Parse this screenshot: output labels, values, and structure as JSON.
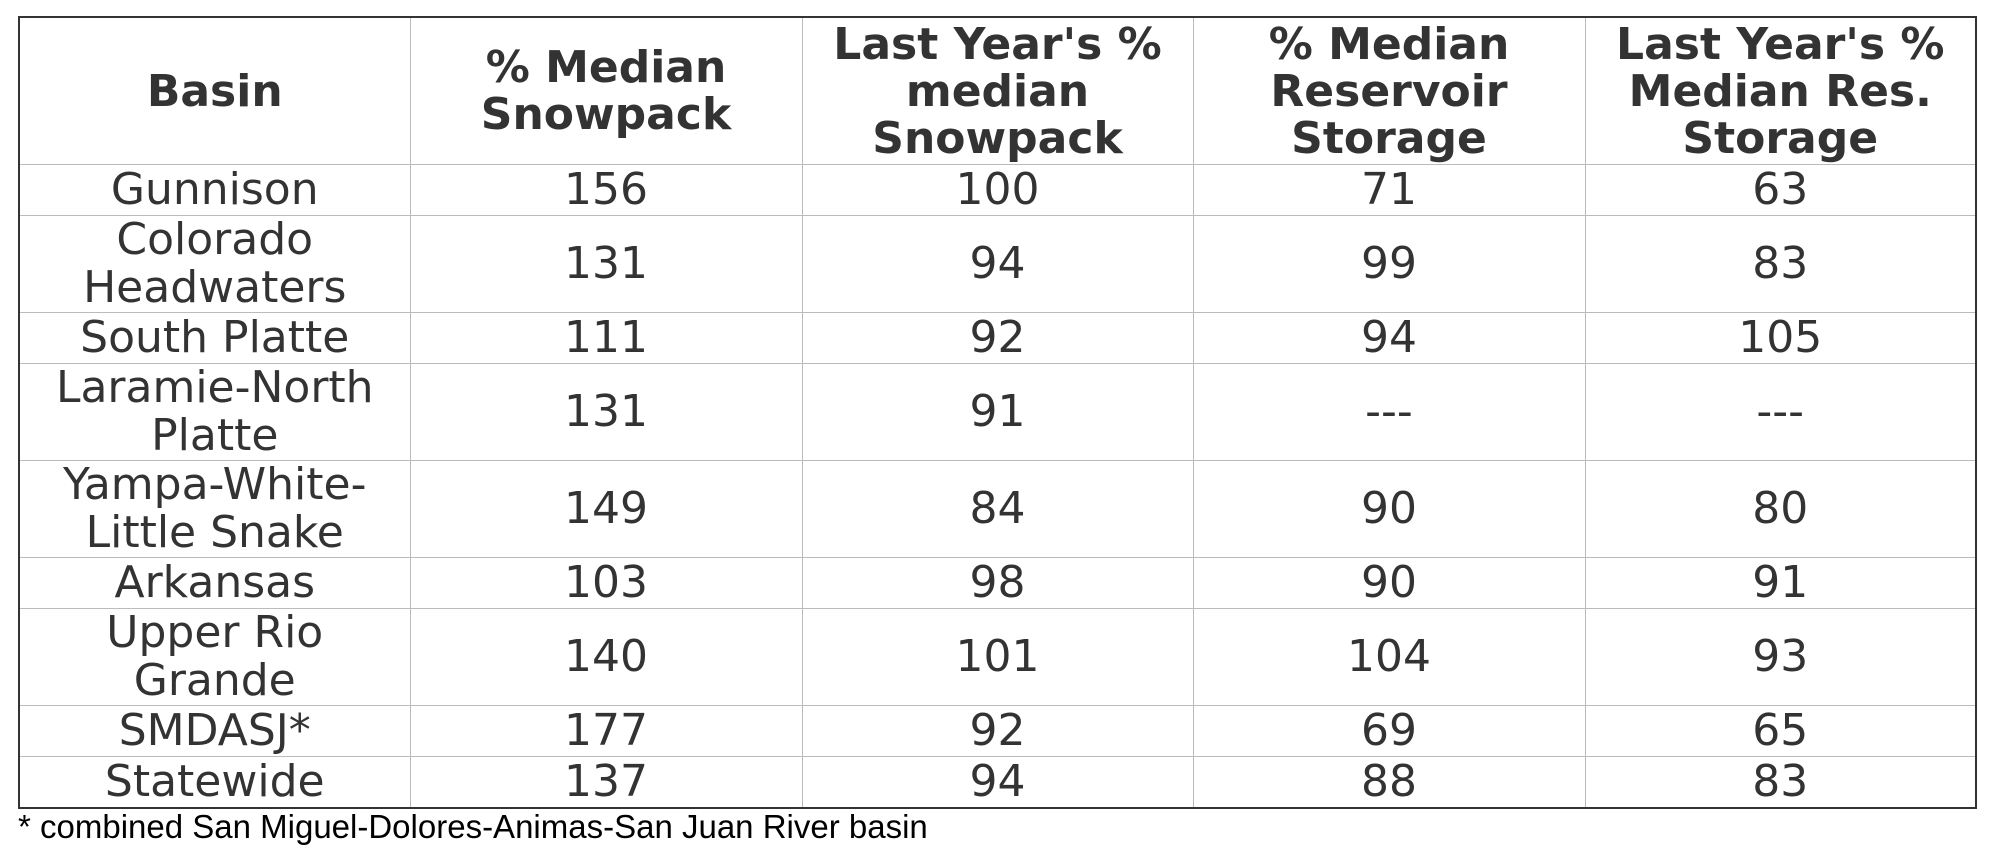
{
  "table": {
    "header": [
      "Basin",
      "% Median Snowpack",
      "Last Year's % median Snowpack",
      "% Median Reservoir Storage",
      "Last Year's % Median Res. Storage"
    ],
    "rows": [
      [
        "Gunnison",
        156,
        100,
        71,
        63
      ],
      [
        "Colorado Headwaters",
        131,
        94,
        99,
        83
      ],
      [
        "South Platte",
        111,
        92,
        94,
        105
      ],
      [
        "Laramie-North Platte",
        131,
        91,
        "---",
        "---"
      ],
      [
        "Yampa-White-Little Snake",
        149,
        84,
        90,
        80
      ],
      [
        "Arkansas",
        103,
        98,
        90,
        91
      ],
      [
        "Upper Rio Grande",
        140,
        101,
        104,
        93
      ],
      [
        "SMDASJ*",
        177,
        92,
        69,
        65
      ],
      [
        "Statewide",
        137,
        94,
        88,
        83
      ]
    ]
  },
  "footnote": "* combined San Miguel-Dolores-Animas-San Juan River basin"
}
